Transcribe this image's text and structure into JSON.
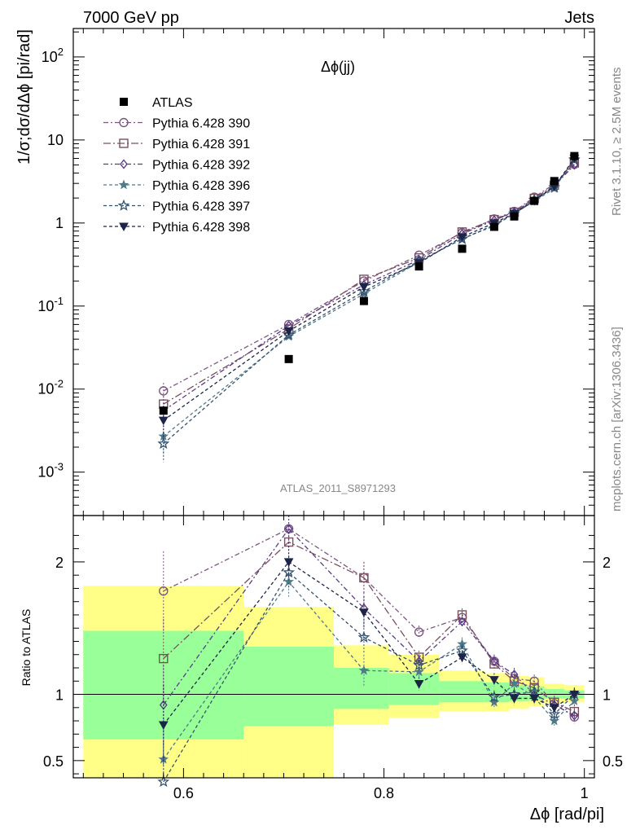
{
  "header": {
    "left": "7000 GeV pp",
    "right": "Jets"
  },
  "side_labels": {
    "rivet": "Rivet 3.1.10, ≥ 2.5M events",
    "mcplots": "mcplots.cern.ch [arXiv:1306.3436]"
  },
  "chart_data": {
    "type": "line",
    "title": "Δϕ(jj)",
    "analysis_label": "ATLAS_2011_S8971293",
    "xlabel": "Δϕ [rad/pi]",
    "ylabel": "1/σ;dσ/dΔϕ [pi/rad]",
    "ratio_ylabel": "Ratio to ATLAS",
    "xlim": [
      0.49,
      1.01
    ],
    "ylim": [
      0.0003,
      220
    ],
    "yscale": "log",
    "ratio_ylim": [
      0.37,
      2.35
    ],
    "x_ticks": [
      "0.6",
      "0.8",
      "1"
    ],
    "y_ticks": [
      "10^-3",
      "10^-2",
      "10^-1",
      "1",
      "10",
      "10^2"
    ],
    "ratio_ticks": [
      "0.5",
      "1",
      "2"
    ],
    "legend_position": "top-left",
    "x": [
      0.58,
      0.705,
      0.78,
      0.835,
      0.878,
      0.91,
      0.93,
      0.95,
      0.97,
      0.99
    ],
    "data": {
      "name": "ATLAS",
      "values": [
        0.0055,
        0.023,
        0.115,
        0.3,
        0.49,
        0.9,
        1.2,
        1.85,
        3.2,
        6.4
      ],
      "color": "#000000"
    },
    "series": [
      {
        "name": "Pythia 6.428 390",
        "marker": "circle-open",
        "dash": "6,3,2,3",
        "color": "#7e5482",
        "values": [
          0.0095,
          0.06,
          0.2,
          0.41,
          0.76,
          1.12,
          1.38,
          2.05,
          2.95,
          5.1
        ],
        "ratio": [
          1.78,
          2.25,
          1.88,
          1.47,
          1.58,
          1.25,
          1.12,
          1.1,
          0.93,
          0.83
        ]
      },
      {
        "name": "Pythia 6.428 391",
        "marker": "square-open",
        "dash": "9,3,2,3",
        "color": "#7a4f5e",
        "values": [
          0.0066,
          0.053,
          0.21,
          0.38,
          0.78,
          1.1,
          1.35,
          1.98,
          2.85,
          5.3
        ],
        "ratio": [
          1.27,
          2.15,
          1.88,
          1.28,
          1.6,
          1.23,
          1.1,
          1.05,
          0.94,
          0.87
        ]
      },
      {
        "name": "Pythia 6.428 392",
        "marker": "diamond-open",
        "dash": "6,3,2,3",
        "color": "#5a3c8a",
        "values": [
          0.0055,
          0.058,
          0.18,
          0.36,
          0.74,
          1.08,
          1.35,
          1.9,
          2.8,
          5.0
        ],
        "ratio": [
          0.92,
          2.25,
          1.65,
          1.25,
          1.55,
          1.25,
          1.15,
          1.0,
          0.92,
          0.84
        ]
      },
      {
        "name": "Pythia 6.428 396",
        "marker": "star-filled",
        "dash": "4,3",
        "color": "#4f7a8c",
        "values": [
          0.0027,
          0.043,
          0.14,
          0.34,
          0.65,
          0.92,
          1.3,
          1.83,
          2.6,
          5.9
        ],
        "ratio": [
          0.51,
          1.85,
          1.18,
          1.17,
          1.38,
          0.94,
          1.08,
          0.98,
          0.8,
          0.95
        ]
      },
      {
        "name": "Pythia 6.428 397",
        "marker": "star-open",
        "dash": "4,3",
        "color": "#35526e",
        "values": [
          0.0022,
          0.045,
          0.15,
          0.35,
          0.64,
          0.95,
          1.3,
          1.9,
          2.7,
          5.8
        ],
        "ratio": [
          0.34,
          1.92,
          1.43,
          1.22,
          1.33,
          0.98,
          1.0,
          1.02,
          0.85,
          1.0
        ]
      },
      {
        "name": "Pythia 6.428 398",
        "marker": "triangle-down-filled",
        "dash": "4,3",
        "color": "#1c2448",
        "values": [
          0.0042,
          0.05,
          0.17,
          0.33,
          0.68,
          1.0,
          1.3,
          1.85,
          2.75,
          6.0
        ],
        "ratio": [
          0.77,
          2.0,
          1.62,
          1.08,
          1.28,
          1.11,
          0.97,
          0.97,
          0.9,
          1.0
        ]
      }
    ],
    "ratio_bands": {
      "bins": [
        [
          0.5,
          0.66
        ],
        [
          0.66,
          0.75
        ],
        [
          0.75,
          0.805
        ],
        [
          0.805,
          0.855
        ],
        [
          0.855,
          0.9
        ],
        [
          0.9,
          0.925
        ],
        [
          0.925,
          0.945
        ],
        [
          0.945,
          0.96
        ],
        [
          0.96,
          0.98
        ],
        [
          0.98,
          1.0
        ]
      ],
      "yellow": [
        [
          0.37,
          1.82
        ],
        [
          0.37,
          1.66
        ],
        [
          0.77,
          1.37
        ],
        [
          0.82,
          1.3
        ],
        [
          0.87,
          1.18
        ],
        [
          0.87,
          1.16
        ],
        [
          0.89,
          1.14
        ],
        [
          0.91,
          1.13
        ],
        [
          0.93,
          1.08
        ],
        [
          0.94,
          1.07
        ]
      ],
      "green": [
        [
          0.66,
          1.48
        ],
        [
          0.76,
          1.36
        ],
        [
          0.89,
          1.2
        ],
        [
          0.92,
          1.16
        ],
        [
          0.94,
          1.1
        ],
        [
          0.94,
          1.09
        ],
        [
          0.95,
          1.07
        ],
        [
          0.96,
          1.06
        ],
        [
          0.97,
          1.04
        ],
        [
          0.97,
          1.03
        ]
      ],
      "yellow_color": "#ffff88",
      "green_color": "#99ff99"
    }
  }
}
